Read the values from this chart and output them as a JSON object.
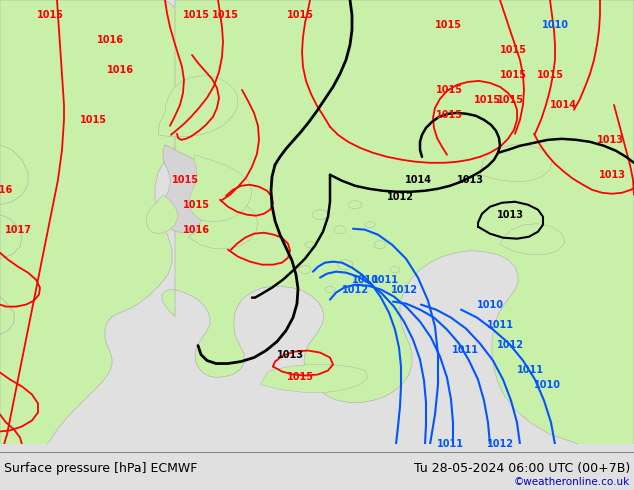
{
  "title_left": "Surface pressure [hPa] ECMWF",
  "title_right": "Tu 28-05-2024 06:00 UTC (00+7B)",
  "credit": "©weatheronline.co.uk",
  "bg_color": "#d4d4d4",
  "land_green": "#c8f0a8",
  "land_gray": "#d4d4d4",
  "coast_color": "#aaaaaa",
  "footer_bg": "#e0e0e0",
  "footer_line_color": "#888888",
  "label_fontsize": 7,
  "footer_fontsize": 9,
  "credit_color": "#0000cc",
  "figsize": [
    6.34,
    4.9
  ],
  "dpi": 100
}
